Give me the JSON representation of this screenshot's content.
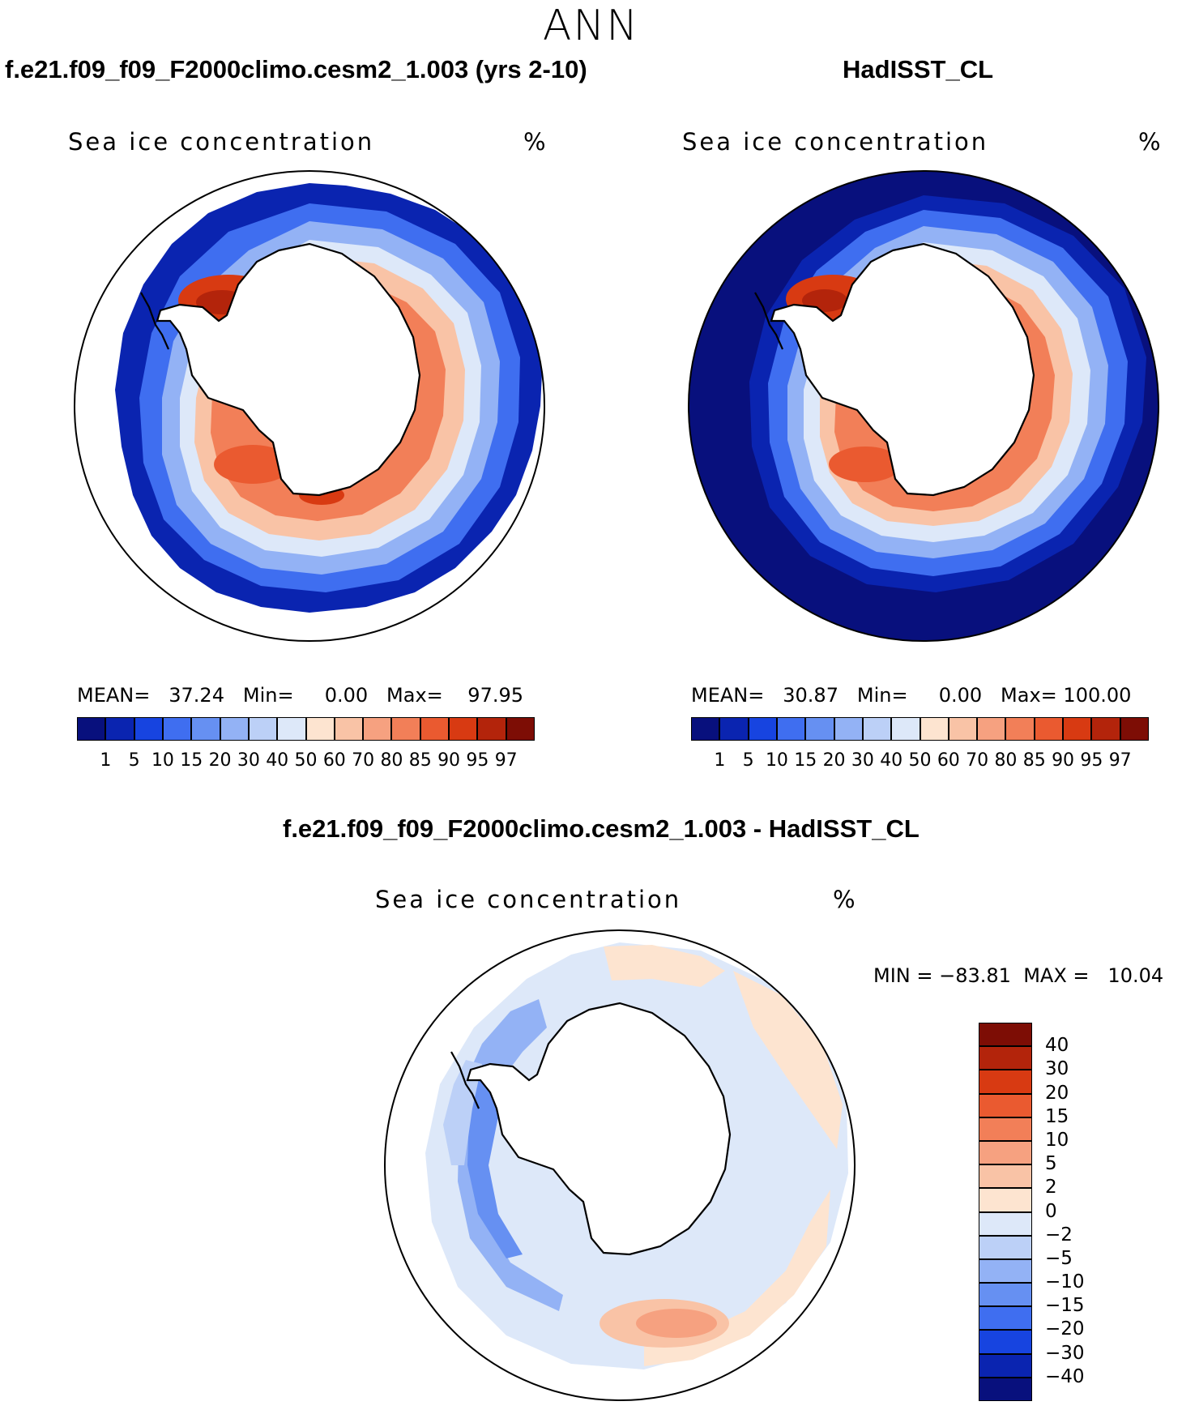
{
  "figure": {
    "title": "ANN",
    "panels": {
      "model": {
        "title": "f.e21.f09_f09_F2000climo.cesm2_1.003 (yrs 2-10)",
        "variable": "Sea ice concentration",
        "units": "%",
        "stats": {
          "mean_label": "MEAN=",
          "mean": "37.24",
          "min_label": "Min=",
          "min": "0.00",
          "max_label": "Max=",
          "max": "97.95"
        }
      },
      "obs": {
        "title": "HadISST_CL",
        "variable": "Sea ice concentration",
        "units": "%",
        "stats": {
          "mean_label": "MEAN=",
          "mean": "30.87",
          "min_label": "Min=",
          "min": "0.00",
          "max_label": "Max=",
          "max": "100.00"
        }
      },
      "diff": {
        "title": "f.e21.f09_f09_F2000climo.cesm2_1.003 - HadISST_CL",
        "variable": "Sea ice concentration",
        "units": "%",
        "stats": {
          "min_label": "MIN =",
          "min": "−83.81",
          "max_label": "MAX =",
          "max": "10.04"
        }
      }
    }
  },
  "chart_data": [
    {
      "type": "heatmap",
      "projection": "south-polar-stereographic",
      "title": "f.e21.f09_f09_F2000climo.cesm2_1.003 (yrs 2-10)",
      "variable": "Sea ice concentration",
      "units": "%",
      "mean": 37.24,
      "min": 0.0,
      "max": 97.95,
      "colorbar": {
        "orientation": "horizontal",
        "levels": [
          "1",
          "5",
          "10",
          "15",
          "20",
          "30",
          "40",
          "50",
          "60",
          "70",
          "80",
          "85",
          "90",
          "95",
          "97"
        ],
        "colors": [
          "#08107d",
          "#0a24b0",
          "#1744e0",
          "#3f6ef0",
          "#6690f2",
          "#93b2f5",
          "#bcd0f7",
          "#dde8f9",
          "#fde4d0",
          "#f9c3a6",
          "#f6a180",
          "#f27f58",
          "#ea5a30",
          "#d83a12",
          "#b3240b",
          "#7d0d05"
        ]
      }
    },
    {
      "type": "heatmap",
      "projection": "south-polar-stereographic",
      "title": "HadISST_CL",
      "variable": "Sea ice concentration",
      "units": "%",
      "mean": 30.87,
      "min": 0.0,
      "max": 100.0,
      "colorbar": {
        "orientation": "horizontal",
        "levels": [
          "1",
          "5",
          "10",
          "15",
          "20",
          "30",
          "40",
          "50",
          "60",
          "70",
          "80",
          "85",
          "90",
          "95",
          "97"
        ],
        "colors": [
          "#08107d",
          "#0a24b0",
          "#1744e0",
          "#3f6ef0",
          "#6690f2",
          "#93b2f5",
          "#bcd0f7",
          "#dde8f9",
          "#fde4d0",
          "#f9c3a6",
          "#f6a180",
          "#f27f58",
          "#ea5a30",
          "#d83a12",
          "#b3240b",
          "#7d0d05"
        ]
      }
    },
    {
      "type": "heatmap",
      "projection": "south-polar-stereographic",
      "title": "f.e21.f09_f09_F2000climo.cesm2_1.003 - HadISST_CL",
      "variable": "Sea ice concentration",
      "units": "%",
      "min": -83.81,
      "max": 10.04,
      "colorbar": {
        "orientation": "vertical",
        "levels_top_to_bottom": [
          "40",
          "30",
          "20",
          "15",
          "10",
          "5",
          "2",
          "0",
          "−2",
          "−5",
          "−10",
          "−15",
          "−20",
          "−30",
          "−40"
        ],
        "colors_top_to_bottom": [
          "#7d0d05",
          "#b3240b",
          "#d83a12",
          "#ea5a30",
          "#f27f58",
          "#f6a180",
          "#f9c3a6",
          "#fde4d0",
          "#dde8f9",
          "#bcd0f7",
          "#93b2f5",
          "#6690f2",
          "#3f6ef0",
          "#1744e0",
          "#0a24b0",
          "#08107d"
        ]
      }
    }
  ]
}
